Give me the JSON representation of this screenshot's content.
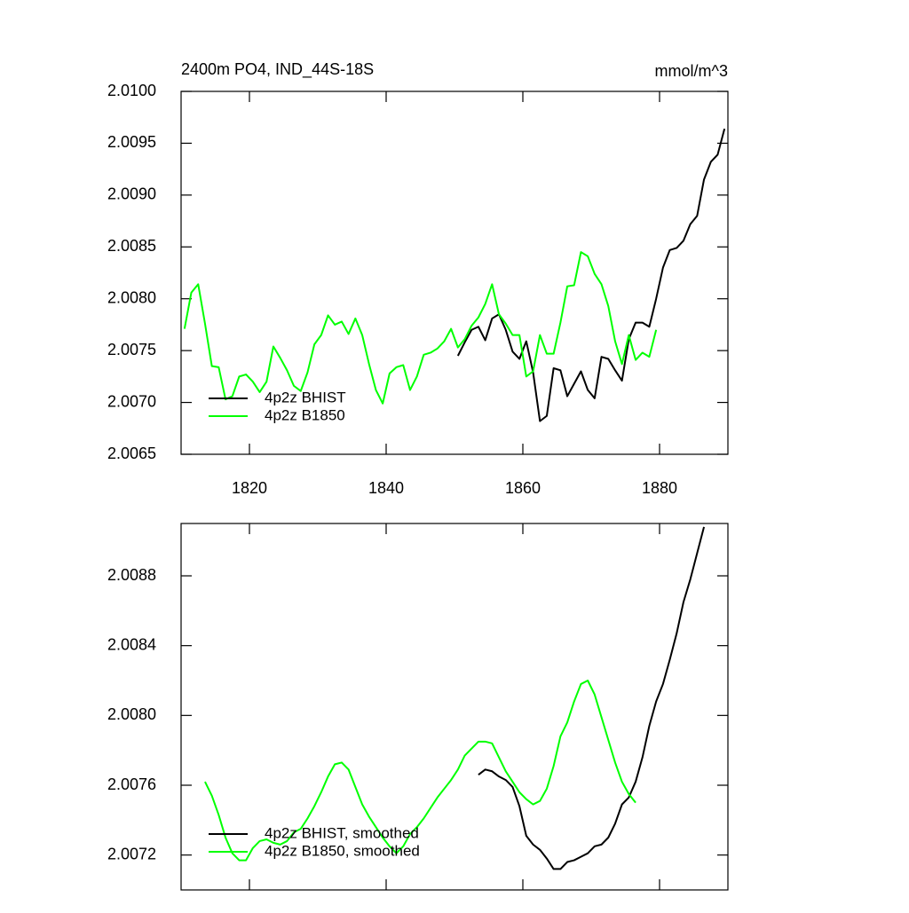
{
  "chart_data": [
    {
      "type": "line",
      "title": "2400m PO4, IND_44S-18S",
      "right_title": "mmol/m^3",
      "xlim": [
        1810,
        1890
      ],
      "xticks": [
        1820,
        1840,
        1860,
        1880
      ],
      "show_xtick_labels": true,
      "ylim": [
        2.0065,
        2.01
      ],
      "yticks": [
        {
          "value": 2.0065,
          "label": "2.0065"
        },
        {
          "value": 2.007,
          "label": "2.0070"
        },
        {
          "value": 2.0075,
          "label": "2.0075"
        },
        {
          "value": 2.008,
          "label": "2.0080"
        },
        {
          "value": 2.0085,
          "label": "2.0085"
        },
        {
          "value": 2.009,
          "label": "2.0090"
        },
        {
          "value": 2.0095,
          "label": "2.0095"
        },
        {
          "value": 2.01,
          "label": "2.0100"
        }
      ],
      "legend": "lower left",
      "series": [
        {
          "name": "4p2z BHIST",
          "color": "#000000",
          "x": [
            1850.5,
            1851.5,
            1852.5,
            1853.5,
            1854.5,
            1855.5,
            1856.5,
            1857.5,
            1858.5,
            1859.5,
            1860.5,
            1861.5,
            1862.5,
            1863.5,
            1864.5,
            1865.5,
            1866.5,
            1867.5,
            1868.5,
            1869.5,
            1870.5,
            1871.5,
            1872.5,
            1873.5,
            1874.5,
            1875.5,
            1876.5,
            1877.5,
            1878.5,
            1879.5,
            1880.5,
            1881.5,
            1882.5,
            1883.5,
            1884.5,
            1885.5,
            1886.5,
            1887.5,
            1888.5,
            1889.5
          ],
          "values": [
            2.00745,
            2.00758,
            2.0077,
            2.00773,
            2.0076,
            2.00781,
            2.00785,
            2.0077,
            2.00749,
            2.00742,
            2.00759,
            2.00729,
            2.00682,
            2.00687,
            2.00733,
            2.00731,
            2.00706,
            2.00718,
            2.0073,
            2.00712,
            2.00704,
            2.00744,
            2.00742,
            2.00731,
            2.00721,
            2.00761,
            2.00777,
            2.00777,
            2.00773,
            2.008,
            2.0083,
            2.00847,
            2.00849,
            2.00856,
            2.00872,
            2.0088,
            2.00915,
            2.00932,
            2.00939,
            2.00964
          ]
        },
        {
          "name": "4p2z B1850",
          "color": "#00ff00",
          "x": [
            1810.5,
            1811.5,
            1812.5,
            1813.5,
            1814.5,
            1815.5,
            1816.5,
            1817.5,
            1818.5,
            1819.5,
            1820.5,
            1821.5,
            1822.5,
            1823.5,
            1824.5,
            1825.5,
            1826.5,
            1827.5,
            1828.5,
            1829.5,
            1830.5,
            1831.5,
            1832.5,
            1833.5,
            1834.5,
            1835.5,
            1836.5,
            1837.5,
            1838.5,
            1839.5,
            1840.5,
            1841.5,
            1842.5,
            1843.5,
            1844.5,
            1845.5,
            1846.5,
            1847.5,
            1848.5,
            1849.5,
            1850.5,
            1851.5,
            1852.5,
            1853.5,
            1854.5,
            1855.5,
            1856.5,
            1857.5,
            1858.5,
            1859.5,
            1860.5,
            1861.5,
            1862.5,
            1863.5,
            1864.5,
            1865.5,
            1866.5,
            1867.5,
            1868.5,
            1869.5,
            1870.5,
            1871.5,
            1872.5,
            1873.5,
            1874.5,
            1875.5,
            1876.5,
            1877.5,
            1878.5,
            1879.5
          ],
          "values": [
            2.00771,
            2.00806,
            2.00814,
            2.00776,
            2.00735,
            2.00734,
            2.00703,
            2.00706,
            2.00725,
            2.00727,
            2.0072,
            2.0071,
            2.0072,
            2.00754,
            2.00743,
            2.00731,
            2.00716,
            2.00711,
            2.00729,
            2.00756,
            2.00765,
            2.00784,
            2.00775,
            2.00778,
            2.00766,
            2.00781,
            2.00765,
            2.00737,
            2.00712,
            2.00699,
            2.00728,
            2.00734,
            2.00736,
            2.00712,
            2.00725,
            2.00746,
            2.00748,
            2.00752,
            2.00759,
            2.00771,
            2.00753,
            2.00761,
            2.00774,
            2.00782,
            2.00795,
            2.00814,
            2.00785,
            2.00776,
            2.00765,
            2.00765,
            2.00725,
            2.0073,
            2.00765,
            2.00747,
            2.00747,
            2.00777,
            2.00812,
            2.00813,
            2.00845,
            2.00841,
            2.00824,
            2.00814,
            2.00793,
            2.00759,
            2.00737,
            2.00765,
            2.00741,
            2.00748,
            2.00744,
            2.0077
          ]
        }
      ]
    },
    {
      "type": "line",
      "xlim": [
        1810,
        1890
      ],
      "xticks": [
        1820,
        1840,
        1860,
        1880
      ],
      "show_xtick_labels": false,
      "ylim": [
        2.007,
        2.0091
      ],
      "yticks": [
        2.0072,
        2.0076,
        {
          "value": 2.008,
          "label": "2.0080"
        },
        2.0084,
        2.0088
      ],
      "legend": "lower left",
      "series": [
        {
          "name": "4p2z BHIST, smoothed",
          "color": "#000000",
          "x": [
            1853.5,
            1854.5,
            1855.5,
            1856.5,
            1857.5,
            1858.5,
            1859.5,
            1860.5,
            1861.5,
            1862.5,
            1863.5,
            1864.5,
            1865.5,
            1866.5,
            1867.5,
            1868.5,
            1869.5,
            1870.5,
            1871.5,
            1872.5,
            1873.5,
            1874.5,
            1875.5,
            1876.5,
            1877.5,
            1878.5,
            1879.5,
            1880.5,
            1881.5,
            1882.5,
            1883.5,
            1884.5,
            1885.5,
            1886.5
          ],
          "values": [
            2.00766,
            2.00769,
            2.00768,
            2.00765,
            2.00763,
            2.00759,
            2.00748,
            2.00731,
            2.00726,
            2.00723,
            2.00718,
            2.00712,
            2.00712,
            2.00716,
            2.00717,
            2.00719,
            2.00721,
            2.00725,
            2.00726,
            2.0073,
            2.00738,
            2.00749,
            2.00753,
            2.00762,
            2.00776,
            2.00794,
            2.00808,
            2.00818,
            2.00832,
            2.00847,
            2.00865,
            2.00878,
            2.00893,
            2.00908
          ]
        },
        {
          "name": "4p2z B1850, smoothed",
          "color": "#00ff00",
          "x": [
            1813.5,
            1814.5,
            1815.5,
            1816.5,
            1817.5,
            1818.5,
            1819.5,
            1820.5,
            1821.5,
            1822.5,
            1823.5,
            1824.5,
            1825.5,
            1826.5,
            1827.5,
            1828.5,
            1829.5,
            1830.5,
            1831.5,
            1832.5,
            1833.5,
            1834.5,
            1835.5,
            1836.5,
            1837.5,
            1838.5,
            1839.5,
            1840.5,
            1841.5,
            1842.5,
            1843.5,
            1844.5,
            1845.5,
            1846.5,
            1847.5,
            1848.5,
            1849.5,
            1850.5,
            1851.5,
            1852.5,
            1853.5,
            1854.5,
            1855.5,
            1856.5,
            1857.5,
            1858.5,
            1859.5,
            1860.5,
            1861.5,
            1862.5,
            1863.5,
            1864.5,
            1865.5,
            1866.5,
            1867.5,
            1868.5,
            1869.5,
            1870.5,
            1871.5,
            1872.5,
            1873.5,
            1874.5,
            1875.5,
            1876.5
          ],
          "values": [
            2.00762,
            2.00754,
            2.00743,
            2.0073,
            2.00721,
            2.00717,
            2.00717,
            2.00724,
            2.00728,
            2.00729,
            2.00727,
            2.00726,
            2.00728,
            2.00733,
            2.00735,
            2.00741,
            2.00748,
            2.00756,
            2.00765,
            2.00772,
            2.00773,
            2.00769,
            2.00759,
            2.00749,
            2.00742,
            2.00736,
            2.0073,
            2.00725,
            2.00721,
            2.00725,
            2.00732,
            2.00736,
            2.00741,
            2.00747,
            2.00753,
            2.00758,
            2.00763,
            2.00769,
            2.00777,
            2.00781,
            2.00785,
            2.00785,
            2.00784,
            2.00776,
            2.00768,
            2.00762,
            2.00756,
            2.00752,
            2.00749,
            2.00751,
            2.00758,
            2.00771,
            2.00788,
            2.00796,
            2.00808,
            2.00818,
            2.0082,
            2.00812,
            2.00799,
            2.00786,
            2.00773,
            2.00762,
            2.00755,
            2.0075
          ]
        }
      ]
    }
  ]
}
